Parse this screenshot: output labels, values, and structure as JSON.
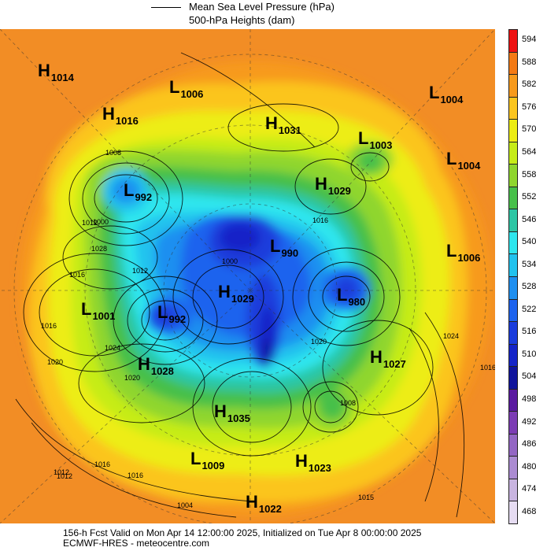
{
  "legend": {
    "pressure_label": "Mean Sea Level Pressure (hPa)",
    "heights_label": "500-hPa Heights (dam)"
  },
  "colorbar": {
    "levels": [
      "594",
      "588",
      "582",
      "576",
      "570",
      "564",
      "558",
      "552",
      "546",
      "540",
      "534",
      "528",
      "522",
      "516",
      "510",
      "504",
      "498",
      "492",
      "486",
      "480",
      "474",
      "468"
    ],
    "colors": [
      "#ee1111",
      "#f47a14",
      "#f79a1c",
      "#fbc51e",
      "#eded13",
      "#c6ec18",
      "#8fd62e",
      "#47c04a",
      "#2cc6a4",
      "#2ee6ee",
      "#21c2ee",
      "#1e8ff0",
      "#1d63ee",
      "#1a3cdc",
      "#1424c8",
      "#10149c",
      "#5a1aa0",
      "#7c3cb4",
      "#9366c4",
      "#ab8bd2",
      "#c8b4e0",
      "#e6dcf2"
    ]
  },
  "systems": [
    {
      "type": "H",
      "value": "1014",
      "name": "high-1014"
    },
    {
      "type": "L",
      "value": "1006",
      "name": "low-1006-a"
    },
    {
      "type": "L",
      "value": "1004",
      "name": "low-1004-a"
    },
    {
      "type": "H",
      "value": "1016",
      "name": "high-1016"
    },
    {
      "type": "H",
      "value": "1031",
      "name": "high-1031"
    },
    {
      "type": "L",
      "value": "1003",
      "name": "low-1003"
    },
    {
      "type": "L",
      "value": "1004",
      "name": "low-1004-b"
    },
    {
      "type": "H",
      "value": "1029",
      "name": "high-1029-a"
    },
    {
      "type": "L",
      "value": "992",
      "name": "low-992-a"
    },
    {
      "type": "L",
      "value": "1006",
      "name": "low-1006-b"
    },
    {
      "type": "L",
      "value": "990",
      "name": "low-990"
    },
    {
      "type": "H",
      "value": "1029",
      "name": "high-1029-b"
    },
    {
      "type": "L",
      "value": "980",
      "name": "low-980"
    },
    {
      "type": "L",
      "value": "1001",
      "name": "low-1001"
    },
    {
      "type": "L",
      "value": "992",
      "name": "low-992-b"
    },
    {
      "type": "H",
      "value": "1028",
      "name": "high-1028"
    },
    {
      "type": "H",
      "value": "1027",
      "name": "high-1027"
    },
    {
      "type": "H",
      "value": "1035",
      "name": "high-1035"
    },
    {
      "type": "L",
      "value": "1009",
      "name": "low-1009"
    },
    {
      "type": "H",
      "value": "1023",
      "name": "high-1023"
    },
    {
      "type": "H",
      "value": "1022",
      "name": "high-1022"
    }
  ],
  "contour_labels": [
    "1008",
    "1012",
    "1028",
    "1016",
    "1016",
    "1020",
    "1024",
    "1020",
    "1012",
    "1016",
    "1016",
    "1000",
    "1016",
    "1020",
    "1024",
    "1015",
    "1008",
    "1004",
    "1012",
    "1016",
    "1000",
    "1012"
  ],
  "footer": {
    "line1": "156-h Fcst Valid on Mon Apr 14 12:00:00 2025, Initialized on Tue Apr  8 00:00:00 2025",
    "line2": "ECMWF-HRES - meteocentre.com"
  }
}
